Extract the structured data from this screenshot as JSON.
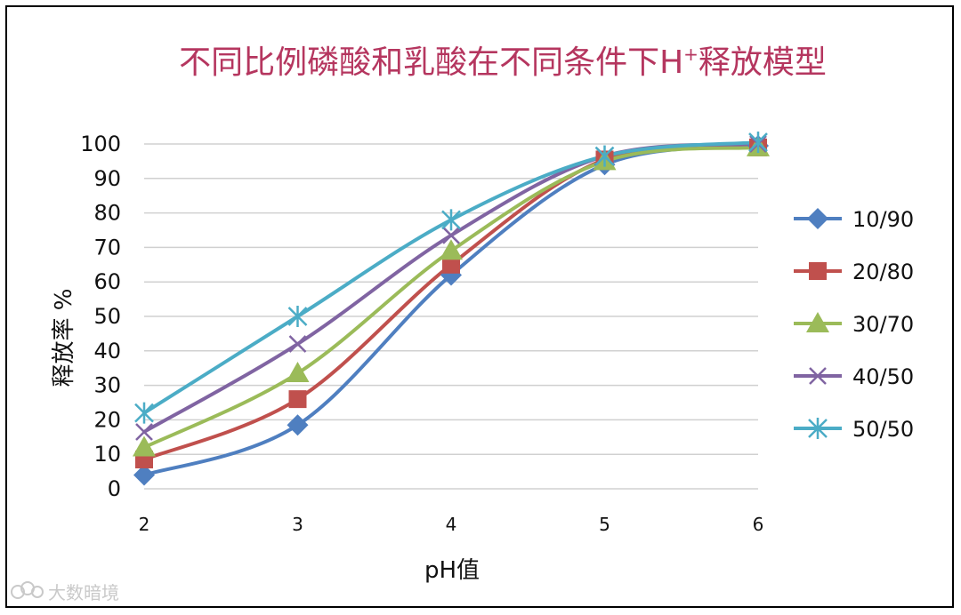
{
  "chart_data": {
    "type": "line",
    "title": "不同比例磷酸和乳酸在不同条件下H",
    "title_superscript": "+",
    "title_suffix": "释放模型",
    "xlabel": "pH值",
    "ylabel": "释放率 %",
    "x": [
      2,
      3,
      4,
      5,
      6
    ],
    "xlim": [
      2,
      6
    ],
    "ylim": [
      0,
      100
    ],
    "yticks": [
      0,
      10,
      20,
      30,
      40,
      50,
      60,
      70,
      80,
      90,
      100
    ],
    "grid": "horizontal",
    "legend_position": "right",
    "series": [
      {
        "name": "10/90",
        "color": "#4f7fc0",
        "marker": "diamond",
        "values": [
          4,
          18.5,
          62,
          94,
          99.5
        ]
      },
      {
        "name": "20/80",
        "color": "#c0504d",
        "marker": "square",
        "values": [
          8.5,
          26,
          65,
          95.5,
          99
        ]
      },
      {
        "name": "30/70",
        "color": "#9bbb59",
        "marker": "triangle",
        "values": [
          12,
          33.5,
          69,
          95,
          99
        ]
      },
      {
        "name": "40/50",
        "color": "#8064a2",
        "marker": "x",
        "values": [
          16.5,
          42,
          73.5,
          96.5,
          100
        ]
      },
      {
        "name": "50/50",
        "color": "#4bacc6",
        "marker": "star",
        "values": [
          22,
          50,
          78,
          96.5,
          100.5
        ]
      }
    ]
  },
  "watermark": {
    "text": "大数暗境",
    "icon": "cloud-logo-icon"
  }
}
